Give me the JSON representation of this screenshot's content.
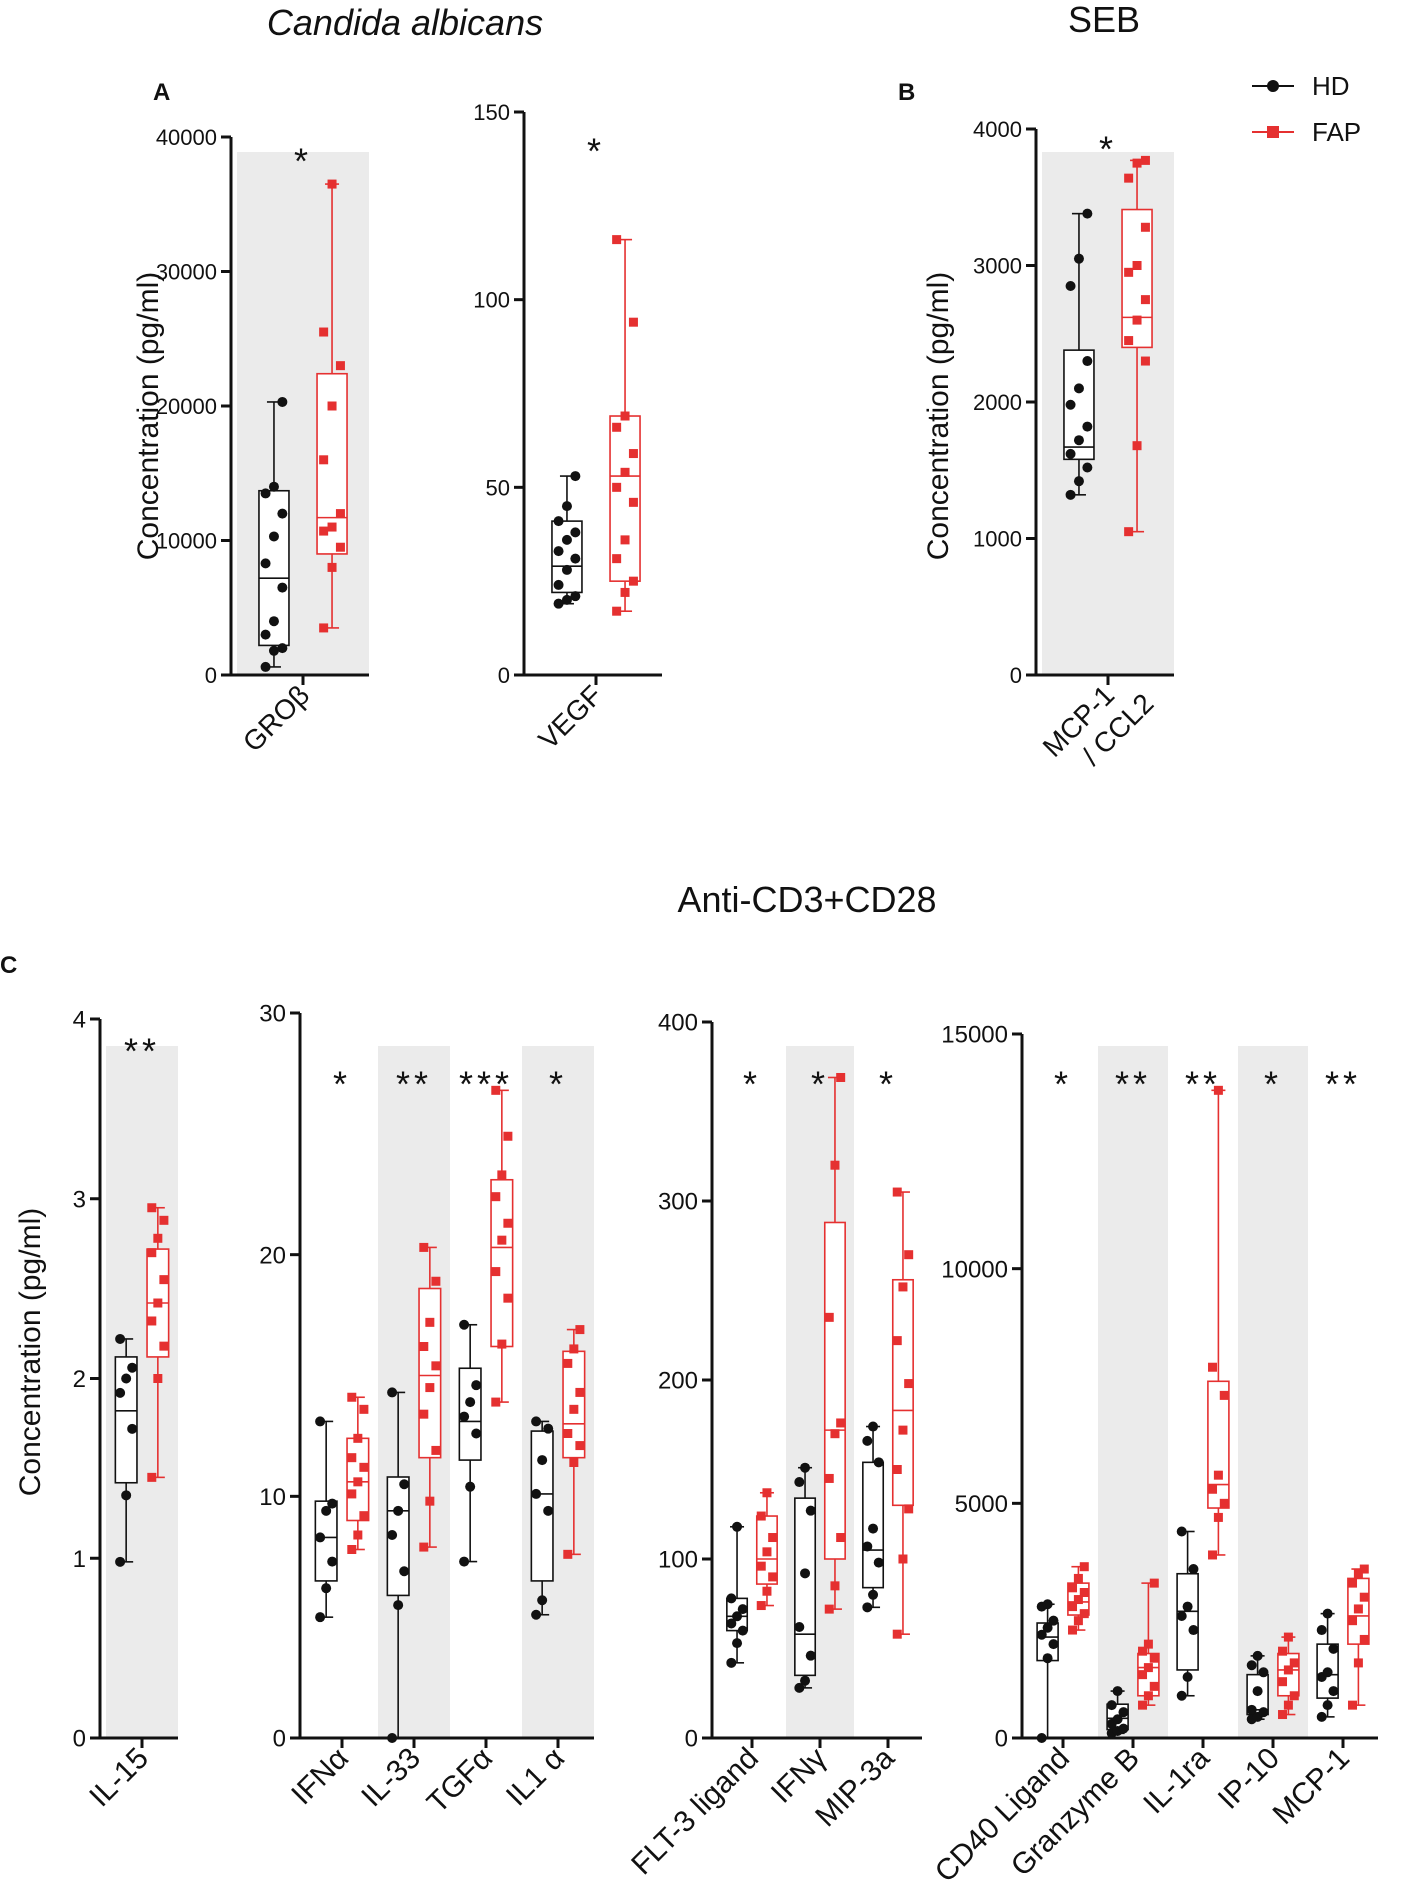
{
  "colors": {
    "hd": "#111111",
    "fap": "#e53030",
    "shade": "#ebebeb"
  },
  "section_titles": {
    "candida": "Candida albicans",
    "seb": "SEB",
    "anti": "Anti-CD3+CD28"
  },
  "panel_labels": {
    "a": "A",
    "b": "B",
    "c": "C"
  },
  "legend": {
    "hd": "HD",
    "fap": "FAP"
  },
  "ylabel": "Concentration (pg/ml)",
  "chart_data": [
    {
      "id": "a1",
      "type": "box",
      "group": "Candida albicans",
      "panel": "A",
      "ylabel": "Concentration (pg/ml)",
      "ylim": [
        0,
        40000
      ],
      "yticks": [
        0,
        10000,
        20000,
        30000,
        40000
      ],
      "categories": [
        {
          "name": "GROβ",
          "sig": "*",
          "shaded": true,
          "hd": {
            "min": 600,
            "q1": 2200,
            "median": 7200,
            "q3": 13700,
            "max": 20300,
            "points": [
              600,
              1800,
              2000,
              3000,
              4000,
              6500,
              8300,
              10300,
              12000,
              13500,
              14000,
              20300
            ]
          },
          "fap": {
            "min": 3500,
            "q1": 9000,
            "median": 11700,
            "q3": 22400,
            "max": 36500,
            "points": [
              3500,
              8000,
              9500,
              10700,
              11000,
              12000,
              16000,
              20000,
              23000,
              25500,
              36500
            ]
          }
        }
      ]
    },
    {
      "id": "a2",
      "type": "box",
      "group": "Candida albicans",
      "panel": "A",
      "ylim": [
        0,
        150
      ],
      "yticks": [
        0,
        50,
        100,
        150
      ],
      "categories": [
        {
          "name": "VEGF",
          "sig": "*",
          "shaded": false,
          "hd": {
            "min": 19,
            "q1": 22,
            "median": 29,
            "q3": 41,
            "max": 53,
            "points": [
              19,
              20,
              21,
              24,
              28,
              31,
              33,
              36,
              38,
              41,
              45,
              53
            ]
          },
          "fap": {
            "min": 17,
            "q1": 25,
            "median": 53,
            "q3": 69,
            "max": 116,
            "points": [
              17,
              22,
              25,
              31,
              36,
              46,
              50,
              54,
              59,
              66,
              69,
              94,
              116
            ]
          }
        }
      ]
    },
    {
      "id": "b1",
      "type": "box",
      "group": "SEB",
      "panel": "B",
      "ylabel": "Concentration (pg/ml)",
      "ylim": [
        0,
        4000
      ],
      "yticks": [
        0,
        1000,
        2000,
        3000,
        4000
      ],
      "categories": [
        {
          "name": "MCP-1 / CCL2",
          "sig": "*",
          "shaded": true,
          "hd": {
            "min": 1320,
            "q1": 1580,
            "median": 1670,
            "q3": 2380,
            "max": 3380,
            "points": [
              1320,
              1420,
              1520,
              1620,
              1720,
              1820,
              1980,
              2100,
              2300,
              2850,
              3050,
              3380
            ]
          },
          "fap": {
            "min": 1050,
            "q1": 2400,
            "median": 2620,
            "q3": 3410,
            "max": 3770,
            "points": [
              1050,
              1680,
              2300,
              2450,
              2600,
              2750,
              2950,
              3000,
              3280,
              3640,
              3750,
              3770
            ]
          }
        }
      ]
    },
    {
      "id": "c1",
      "type": "box",
      "group": "Anti-CD3+CD28",
      "panel": "C",
      "ylabel": "Concentration (pg/ml)",
      "ylim": [
        0,
        4
      ],
      "yticks": [
        0,
        1,
        2,
        3,
        4
      ],
      "categories": [
        {
          "name": "IL-15",
          "sig": "**",
          "shaded": true,
          "hd": {
            "min": 0.98,
            "q1": 1.42,
            "median": 1.82,
            "q3": 2.12,
            "max": 2.22,
            "points": [
              0.98,
              1.35,
              1.72,
              1.92,
              2.0,
              2.06,
              2.22
            ]
          },
          "fap": {
            "min": 1.45,
            "q1": 2.12,
            "median": 2.42,
            "q3": 2.72,
            "max": 2.95,
            "points": [
              1.45,
              2.0,
              2.18,
              2.32,
              2.42,
              2.55,
              2.7,
              2.78,
              2.88,
              2.95
            ]
          }
        }
      ]
    },
    {
      "id": "c2",
      "type": "box",
      "group": "Anti-CD3+CD28",
      "panel": "C",
      "ylim": [
        0,
        30
      ],
      "yticks": [
        0,
        10,
        20,
        30
      ],
      "categories": [
        {
          "name": "IFNα",
          "sig": "*",
          "shaded": false,
          "hd": {
            "min": 5,
            "q1": 6.5,
            "median": 8.3,
            "q3": 9.8,
            "max": 13.1,
            "points": [
              5,
              6.2,
              7.3,
              8.3,
              9.4,
              9.7,
              13.1
            ]
          },
          "fap": {
            "min": 7.8,
            "q1": 9,
            "median": 10.6,
            "q3": 12.4,
            "max": 14.1,
            "points": [
              7.8,
              8.4,
              9.2,
              10.1,
              10.6,
              11.2,
              11.6,
              12.4,
              13.6,
              14.1
            ]
          }
        },
        {
          "name": "IL-33",
          "sig": "**",
          "shaded": true,
          "hd": {
            "min": 0,
            "q1": 5.9,
            "median": 9.4,
            "q3": 10.8,
            "max": 14.3,
            "points": [
              0,
              5.5,
              6.9,
              8.4,
              9.4,
              10.5,
              14.3
            ]
          },
          "fap": {
            "min": 7.9,
            "q1": 11.6,
            "median": 15,
            "q3": 18.6,
            "max": 20.3,
            "points": [
              7.9,
              9.8,
              11.9,
              13.4,
              14.5,
              15.4,
              16.2,
              17.2,
              18.9,
              20.3
            ]
          }
        },
        {
          "name": "TGFα",
          "sig": "***",
          "shaded": false,
          "hd": {
            "min": 7.3,
            "q1": 11.5,
            "median": 13.1,
            "q3": 15.3,
            "max": 17.1,
            "points": [
              7.3,
              10.4,
              12.6,
              13.3,
              13.9,
              14.6,
              17.1
            ]
          },
          "fap": {
            "min": 13.9,
            "q1": 16.2,
            "median": 20.3,
            "q3": 23.1,
            "max": 26.8,
            "points": [
              13.9,
              16.3,
              18.2,
              19.3,
              20.6,
              21.3,
              22.4,
              23.3,
              24.9,
              26.8
            ]
          }
        },
        {
          "name": "IL1 α",
          "sig": "*",
          "shaded": true,
          "hd": {
            "min": 5.1,
            "q1": 6.5,
            "median": 10.1,
            "q3": 12.7,
            "max": 13.1,
            "points": [
              5.1,
              5.7,
              9.4,
              10.1,
              11.5,
              12.8,
              13.1
            ]
          },
          "fap": {
            "min": 7.6,
            "q1": 11.6,
            "median": 13,
            "q3": 16,
            "max": 16.9,
            "points": [
              7.6,
              11.4,
              12.1,
              12.6,
              13.6,
              14.3,
              15.5,
              16.1,
              16.9
            ]
          }
        }
      ]
    },
    {
      "id": "c3",
      "type": "box",
      "group": "Anti-CD3+CD28",
      "panel": "C",
      "ylim": [
        0,
        400
      ],
      "yticks": [
        0,
        100,
        200,
        300,
        400
      ],
      "categories": [
        {
          "name": "FLT-3 ligand",
          "sig": "*",
          "shaded": false,
          "hd": {
            "min": 42,
            "q1": 60,
            "median": 68,
            "q3": 78,
            "max": 118,
            "points": [
              42,
              53,
              60,
              64,
              68,
              72,
              78,
              118
            ]
          },
          "fap": {
            "min": 74,
            "q1": 86,
            "median": 100,
            "q3": 124,
            "max": 137,
            "points": [
              74,
              82,
              90,
              96,
              104,
              112,
              124,
              137
            ]
          }
        },
        {
          "name": "IFNγ",
          "sig": "*",
          "shaded": true,
          "hd": {
            "min": 28,
            "q1": 35,
            "median": 58,
            "q3": 134,
            "max": 151,
            "points": [
              28,
              32,
              46,
              62,
              92,
              127,
              143,
              151
            ]
          },
          "fap": {
            "min": 72,
            "q1": 100,
            "median": 172,
            "q3": 288,
            "max": 369,
            "points": [
              72,
              85,
              112,
              145,
              170,
              176,
              235,
              320,
              369
            ]
          }
        },
        {
          "name": "MIP-3a",
          "sig": "*",
          "shaded": false,
          "hd": {
            "min": 73,
            "q1": 84,
            "median": 105,
            "q3": 154,
            "max": 174,
            "points": [
              73,
              80,
              98,
              107,
              117,
              154,
              166,
              174
            ]
          },
          "fap": {
            "min": 58,
            "q1": 130,
            "median": 183,
            "q3": 256,
            "max": 305,
            "points": [
              58,
              100,
              128,
              150,
              172,
              198,
              222,
              252,
              270,
              305
            ]
          }
        }
      ]
    },
    {
      "id": "c4",
      "type": "box",
      "group": "Anti-CD3+CD28",
      "panel": "C",
      "ylim": [
        0,
        15000
      ],
      "yticks": [
        0,
        5000,
        10000,
        15000
      ],
      "categories": [
        {
          "name": "CD40 Ligand",
          "sig": "*",
          "shaded": false,
          "hd": {
            "min": 0,
            "q1": 1650,
            "median": 2150,
            "q3": 2450,
            "max": 2850,
            "points": [
              0,
              1700,
              2000,
              2200,
              2350,
              2500,
              2800,
              2850
            ]
          },
          "fap": {
            "min": 2300,
            "q1": 2620,
            "median": 2900,
            "q3": 3300,
            "max": 3650,
            "points": [
              2300,
              2500,
              2650,
              2800,
              2950,
              3100,
              3200,
              3400,
              3650
            ]
          }
        },
        {
          "name": "Granzyme B",
          "sig": "**",
          "shaded": true,
          "hd": {
            "min": 100,
            "q1": 180,
            "median": 420,
            "q3": 720,
            "max": 1000,
            "points": [
              100,
              150,
              200,
              300,
              400,
              550,
              700,
              1000
            ]
          },
          "fap": {
            "min": 700,
            "q1": 900,
            "median": 1500,
            "q3": 1800,
            "max": 3300,
            "points": [
              700,
              900,
              1100,
              1350,
              1500,
              1700,
              1850,
              2000,
              3300
            ]
          }
        },
        {
          "name": "IL-1ra",
          "sig": "**",
          "shaded": false,
          "hd": {
            "min": 900,
            "q1": 1450,
            "median": 2700,
            "q3": 3500,
            "max": 4400,
            "points": [
              900,
              1300,
              2300,
              2600,
              2800,
              3600,
              4400
            ]
          },
          "fap": {
            "min": 3900,
            "q1": 4900,
            "median": 5400,
            "q3": 7600,
            "max": 13800,
            "points": [
              3900,
              4700,
              5000,
              5300,
              5600,
              7300,
              7900,
              13800
            ]
          }
        },
        {
          "name": "IP-10",
          "sig": "*",
          "shaded": true,
          "hd": {
            "min": 400,
            "q1": 500,
            "median": 600,
            "q3": 1350,
            "max": 1750,
            "points": [
              400,
              450,
              550,
              600,
              1000,
              1400,
              1550,
              1750
            ]
          },
          "fap": {
            "min": 500,
            "q1": 900,
            "median": 1450,
            "q3": 1800,
            "max": 2150,
            "points": [
              500,
              700,
              900,
              1200,
              1450,
              1600,
              1850,
              2150
            ]
          }
        },
        {
          "name": "MCP-1",
          "sig": "**",
          "shaded": false,
          "hd": {
            "min": 450,
            "q1": 850,
            "median": 1350,
            "q3": 2000,
            "max": 2650,
            "points": [
              450,
              700,
              1000,
              1300,
              1400,
              1900,
              2300,
              2650
            ]
          },
          "fap": {
            "min": 700,
            "q1": 2000,
            "median": 2600,
            "q3": 3400,
            "max": 3600,
            "points": [
              700,
              1600,
              2100,
              2500,
              2750,
              3000,
              3300,
              3500,
              3600
            ]
          }
        }
      ]
    }
  ]
}
